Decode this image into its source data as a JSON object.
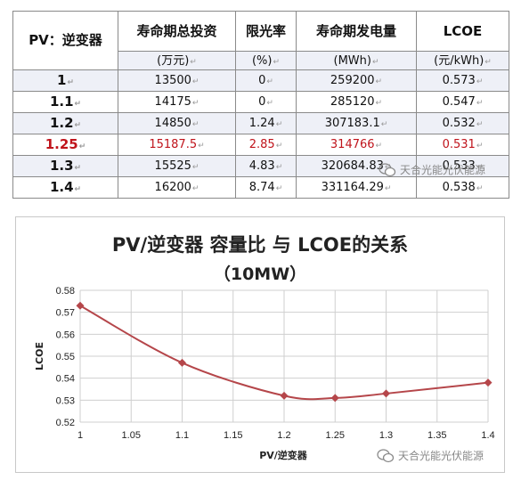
{
  "table": {
    "headers": [
      "PV：逆变器",
      "寿命期总投资",
      "限光率",
      "寿命期发电量",
      "LCOE"
    ],
    "units": [
      "(万元)",
      "(%)",
      "(MWh)",
      "(元/kWh)"
    ],
    "rows": [
      {
        "pv": "1",
        "invest": "13500",
        "curtail": "0",
        "energy": "259200",
        "lcoe": "0.573"
      },
      {
        "pv": "1.1",
        "invest": "14175",
        "curtail": "0",
        "energy": "285120",
        "lcoe": "0.547"
      },
      {
        "pv": "1.2",
        "invest": "14850",
        "curtail": "1.24",
        "energy": "307183.1",
        "lcoe": "0.532"
      },
      {
        "pv": "1.25",
        "invest": "15187.5",
        "curtail": "2.85",
        "energy": "314766",
        "lcoe": "0.531"
      },
      {
        "pv": "1.3",
        "invest": "15525",
        "curtail": "4.83",
        "energy": "320684.83",
        "lcoe": "0.533"
      },
      {
        "pv": "1.4",
        "invest": "16200",
        "curtail": "8.74",
        "energy": "331164.29",
        "lcoe": "0.538"
      }
    ],
    "highlight_row": 3,
    "highlight_color": "#c0141c",
    "shade_color": "#eef0f7"
  },
  "watermark": {
    "text": "天合光能光伏能源",
    "icon": "wechat-icon"
  },
  "chart_data": {
    "type": "line",
    "title": "PV/逆变器 容量比 与 LCOE的关系",
    "subtitle": "（10MW）",
    "xlabel": "PV/逆变器",
    "ylabel": "LCOE",
    "x": [
      1,
      1.1,
      1.2,
      1.25,
      1.3,
      1.4
    ],
    "series": [
      {
        "values": [
          0.573,
          0.547,
          0.532,
          0.531,
          0.533,
          0.538
        ]
      }
    ],
    "xlim": [
      1,
      1.4
    ],
    "ylim": [
      0.52,
      0.58
    ],
    "xticks": [
      "1",
      "1.05",
      "1.1",
      "1.15",
      "1.2",
      "1.25",
      "1.3",
      "1.35",
      "1.4"
    ],
    "yticks": [
      "0.52",
      "0.53",
      "0.54",
      "0.55",
      "0.56",
      "0.57",
      "0.58"
    ],
    "grid": true,
    "line_color": "#b5464a",
    "marker": "diamond",
    "smooth": true
  }
}
